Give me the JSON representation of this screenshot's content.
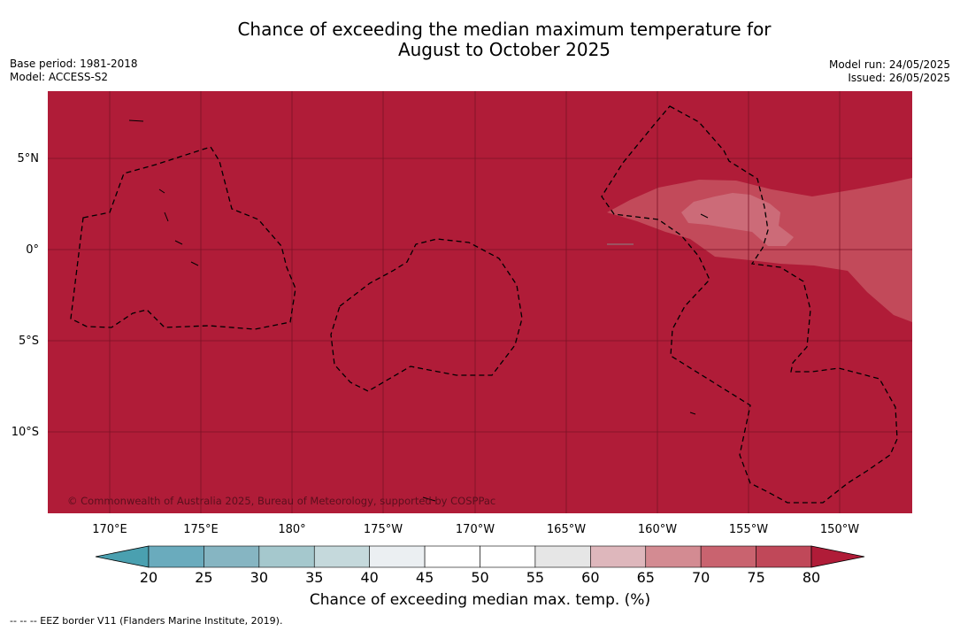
{
  "title_line1": "Chance of exceeding the median maximum temperature for",
  "title_line2": "August to October 2025",
  "meta_left": {
    "base_period": "Base period: 1981-2018",
    "model": "Model: ACCESS-S2"
  },
  "meta_right": {
    "model_run": "Model run: 24/05/2025",
    "issued": "Issued: 26/05/2025"
  },
  "map": {
    "lat_labels": [
      "5°N",
      "0°",
      "5°S",
      "10°S"
    ],
    "lon_labels": [
      "170°E",
      "175°E",
      "180°",
      "175°W",
      "170°W",
      "165°W",
      "160°W",
      "155°W",
      "150°W"
    ],
    "copyright": "© Commonwealth of Australia 2025, Bureau of Meteorology, supported by COSPPac",
    "colors": {
      "ocean_80plus": "#b01c38",
      "zone_75_80": "#c24a5a",
      "zone_70_75": "#cc6b78",
      "grid": "#7a1226",
      "eez": "#000000"
    }
  },
  "colorbar": {
    "ticks": [
      "20",
      "25",
      "30",
      "35",
      "40",
      "45",
      "50",
      "55",
      "60",
      "65",
      "70",
      "75",
      "80"
    ],
    "colors": [
      "#4aa0b0",
      "#6aabbd",
      "#86b5c2",
      "#a5c8cd",
      "#c5d9dc",
      "#ebeff2",
      "#ffffff",
      "#ffffff",
      "#e6e6e6",
      "#deb7bc",
      "#d38b92",
      "#c9636f",
      "#c04859",
      "#b01c38"
    ],
    "label": "Chance of exceeding median max. temp. (%)"
  },
  "legend": {
    "eez": "-- -- -- EEZ border V11 (Flanders Marine Institute, 2019)."
  }
}
